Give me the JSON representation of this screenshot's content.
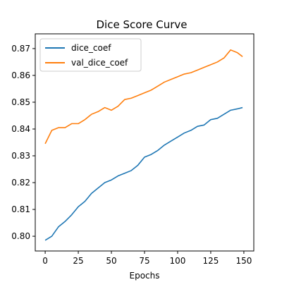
{
  "chart_data": {
    "type": "line",
    "title": "Dice Score Curve",
    "xlabel": "Epochs",
    "ylabel": "",
    "xlim": [
      -7.5,
      157.5
    ],
    "ylim": [
      0.7945,
      0.8755
    ],
    "xticks": [
      0,
      25,
      50,
      75,
      100,
      125,
      150
    ],
    "yticks": [
      0.8,
      0.81,
      0.82,
      0.83,
      0.84,
      0.85,
      0.86,
      0.87
    ],
    "legend_position": "top-left",
    "grid": false,
    "series": [
      {
        "name": "dice_coef",
        "color": "#1f77b4",
        "x": [
          0,
          5,
          10,
          15,
          20,
          25,
          30,
          35,
          40,
          45,
          50,
          55,
          60,
          65,
          70,
          75,
          80,
          85,
          90,
          95,
          100,
          105,
          110,
          115,
          120,
          125,
          130,
          135,
          140,
          145,
          149
        ],
        "y": [
          0.7985,
          0.8,
          0.8035,
          0.8055,
          0.808,
          0.811,
          0.813,
          0.816,
          0.818,
          0.82,
          0.821,
          0.8225,
          0.8235,
          0.8245,
          0.8265,
          0.8295,
          0.8305,
          0.832,
          0.834,
          0.8355,
          0.837,
          0.8385,
          0.8395,
          0.841,
          0.8415,
          0.8435,
          0.844,
          0.8455,
          0.847,
          0.8475,
          0.848
        ]
      },
      {
        "name": "val_dice_coef",
        "color": "#ff7f0e",
        "x": [
          0,
          5,
          10,
          15,
          20,
          25,
          30,
          35,
          40,
          45,
          50,
          55,
          60,
          65,
          70,
          75,
          80,
          85,
          90,
          95,
          100,
          105,
          110,
          115,
          120,
          125,
          130,
          135,
          140,
          145,
          149
        ],
        "y": [
          0.8345,
          0.8395,
          0.8405,
          0.8405,
          0.842,
          0.842,
          0.8435,
          0.8455,
          0.8465,
          0.848,
          0.847,
          0.8485,
          0.851,
          0.8515,
          0.8525,
          0.8535,
          0.8545,
          0.856,
          0.8575,
          0.8585,
          0.8595,
          0.8605,
          0.861,
          0.862,
          0.863,
          0.864,
          0.865,
          0.8665,
          0.8695,
          0.8685,
          0.867
        ]
      }
    ]
  }
}
